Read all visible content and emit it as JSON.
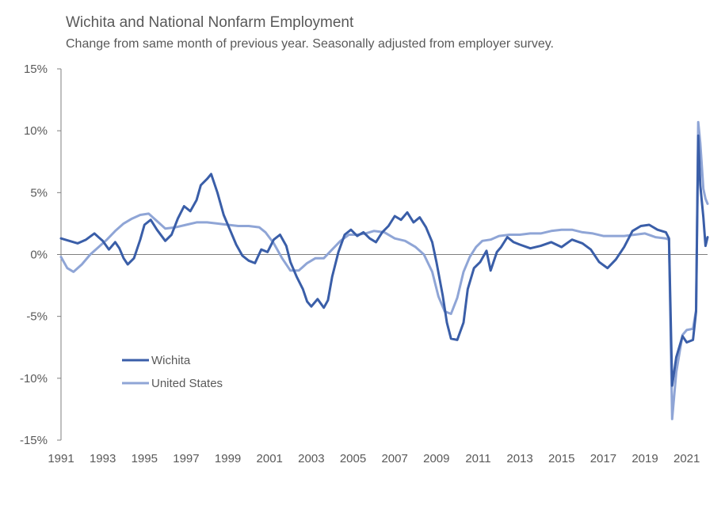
{
  "chart_data": {
    "type": "line",
    "title": "Wichita and National Nonfarm Employment",
    "subtitle": "Change from same month of previous year. Seasonally adjusted from employer survey.",
    "xlabel": "",
    "ylabel": "",
    "xlim": [
      1991,
      2021.9
    ],
    "ylim": [
      -15,
      15
    ],
    "yticks": [
      15,
      10,
      5,
      0,
      -5,
      -10,
      -15
    ],
    "ytick_labels": [
      "15%",
      "10%",
      "5%",
      "0%",
      "-5%",
      "-10%",
      "-15%"
    ],
    "xticks": [
      1991,
      1993,
      1995,
      1997,
      1999,
      2001,
      2003,
      2005,
      2007,
      2009,
      2011,
      2013,
      2015,
      2017,
      2019,
      2021
    ],
    "xtick_labels": [
      "1991",
      "1993",
      "1995",
      "1997",
      "1999",
      "2001",
      "2003",
      "2005",
      "2007",
      "2009",
      "2011",
      "2013",
      "2015",
      "2017",
      "2019",
      "2021"
    ],
    "grid": false,
    "legend_position": "lower-left",
    "series": [
      {
        "name": "Wichita",
        "color": "#3a5ea8",
        "points": [
          [
            1991.0,
            1.3
          ],
          [
            1991.4,
            1.1
          ],
          [
            1991.8,
            0.9
          ],
          [
            1992.2,
            1.2
          ],
          [
            1992.6,
            1.7
          ],
          [
            1993.0,
            1.1
          ],
          [
            1993.3,
            0.4
          ],
          [
            1993.6,
            1.0
          ],
          [
            1993.8,
            0.5
          ],
          [
            1994.0,
            -0.3
          ],
          [
            1994.2,
            -0.8
          ],
          [
            1994.5,
            -0.3
          ],
          [
            1994.8,
            1.2
          ],
          [
            1995.0,
            2.4
          ],
          [
            1995.3,
            2.8
          ],
          [
            1995.6,
            2.0
          ],
          [
            1996.0,
            1.1
          ],
          [
            1996.3,
            1.6
          ],
          [
            1996.6,
            2.9
          ],
          [
            1996.9,
            3.9
          ],
          [
            1997.2,
            3.5
          ],
          [
            1997.5,
            4.4
          ],
          [
            1997.7,
            5.6
          ],
          [
            1998.0,
            6.1
          ],
          [
            1998.2,
            6.5
          ],
          [
            1998.5,
            5.0
          ],
          [
            1998.8,
            3.2
          ],
          [
            1999.1,
            2.0
          ],
          [
            1999.4,
            0.8
          ],
          [
            1999.7,
            -0.1
          ],
          [
            2000.0,
            -0.5
          ],
          [
            2000.3,
            -0.7
          ],
          [
            2000.6,
            0.4
          ],
          [
            2000.9,
            0.2
          ],
          [
            2001.2,
            1.2
          ],
          [
            2001.5,
            1.6
          ],
          [
            2001.8,
            0.7
          ],
          [
            2002.0,
            -0.6
          ],
          [
            2002.3,
            -1.8
          ],
          [
            2002.6,
            -2.8
          ],
          [
            2002.8,
            -3.8
          ],
          [
            2003.0,
            -4.2
          ],
          [
            2003.3,
            -3.6
          ],
          [
            2003.6,
            -4.3
          ],
          [
            2003.8,
            -3.7
          ],
          [
            2004.0,
            -1.8
          ],
          [
            2004.3,
            0.2
          ],
          [
            2004.6,
            1.6
          ],
          [
            2004.9,
            2.0
          ],
          [
            2005.2,
            1.5
          ],
          [
            2005.5,
            1.8
          ],
          [
            2005.8,
            1.3
          ],
          [
            2006.1,
            1.0
          ],
          [
            2006.4,
            1.8
          ],
          [
            2006.7,
            2.3
          ],
          [
            2007.0,
            3.1
          ],
          [
            2007.3,
            2.8
          ],
          [
            2007.6,
            3.4
          ],
          [
            2007.9,
            2.6
          ],
          [
            2008.2,
            3.0
          ],
          [
            2008.5,
            2.2
          ],
          [
            2008.8,
            1.0
          ],
          [
            2009.0,
            -0.6
          ],
          [
            2009.3,
            -3.3
          ],
          [
            2009.5,
            -5.5
          ],
          [
            2009.7,
            -6.8
          ],
          [
            2010.0,
            -6.9
          ],
          [
            2010.3,
            -5.5
          ],
          [
            2010.5,
            -2.8
          ],
          [
            2010.8,
            -1.1
          ],
          [
            2011.1,
            -0.6
          ],
          [
            2011.4,
            0.3
          ],
          [
            2011.6,
            -1.3
          ],
          [
            2011.9,
            0.2
          ],
          [
            2012.1,
            0.6
          ],
          [
            2012.4,
            1.4
          ],
          [
            2012.7,
            1.0
          ],
          [
            2013.0,
            0.8
          ],
          [
            2013.5,
            0.5
          ],
          [
            2014.0,
            0.7
          ],
          [
            2014.5,
            1.0
          ],
          [
            2015.0,
            0.6
          ],
          [
            2015.5,
            1.2
          ],
          [
            2016.0,
            0.9
          ],
          [
            2016.4,
            0.4
          ],
          [
            2016.8,
            -0.6
          ],
          [
            2017.2,
            -1.1
          ],
          [
            2017.6,
            -0.4
          ],
          [
            2018.0,
            0.6
          ],
          [
            2018.4,
            1.9
          ],
          [
            2018.8,
            2.3
          ],
          [
            2019.2,
            2.4
          ],
          [
            2019.6,
            2.0
          ],
          [
            2020.0,
            1.8
          ],
          [
            2020.15,
            1.3
          ],
          [
            2020.3,
            -10.6
          ],
          [
            2020.5,
            -8.3
          ],
          [
            2020.8,
            -6.6
          ],
          [
            2021.0,
            -7.1
          ],
          [
            2021.3,
            -6.9
          ],
          [
            2021.45,
            -4.6
          ],
          [
            2021.55,
            9.6
          ],
          [
            2021.65,
            5.6
          ],
          [
            2021.8,
            3.0
          ],
          [
            2021.9,
            0.7
          ],
          [
            2022.0,
            1.4
          ]
        ]
      },
      {
        "name": "United States",
        "color": "#8fa5d6",
        "points": [
          [
            1991.0,
            -0.2
          ],
          [
            1991.3,
            -1.1
          ],
          [
            1991.6,
            -1.4
          ],
          [
            1992.0,
            -0.8
          ],
          [
            1992.4,
            0.0
          ],
          [
            1992.8,
            0.6
          ],
          [
            1993.2,
            1.2
          ],
          [
            1993.6,
            1.9
          ],
          [
            1994.0,
            2.5
          ],
          [
            1994.4,
            2.9
          ],
          [
            1994.8,
            3.2
          ],
          [
            1995.2,
            3.3
          ],
          [
            1995.6,
            2.7
          ],
          [
            1996.0,
            2.1
          ],
          [
            1996.5,
            2.2
          ],
          [
            1997.0,
            2.4
          ],
          [
            1997.5,
            2.6
          ],
          [
            1998.0,
            2.6
          ],
          [
            1998.5,
            2.5
          ],
          [
            1999.0,
            2.4
          ],
          [
            1999.5,
            2.3
          ],
          [
            2000.0,
            2.3
          ],
          [
            2000.5,
            2.2
          ],
          [
            2000.8,
            1.8
          ],
          [
            2001.2,
            0.9
          ],
          [
            2001.6,
            -0.3
          ],
          [
            2002.0,
            -1.3
          ],
          [
            2002.4,
            -1.3
          ],
          [
            2002.8,
            -0.7
          ],
          [
            2003.2,
            -0.3
          ],
          [
            2003.6,
            -0.3
          ],
          [
            2004.0,
            0.4
          ],
          [
            2004.4,
            1.1
          ],
          [
            2004.8,
            1.6
          ],
          [
            2005.2,
            1.6
          ],
          [
            2005.6,
            1.7
          ],
          [
            2006.0,
            1.9
          ],
          [
            2006.5,
            1.8
          ],
          [
            2007.0,
            1.3
          ],
          [
            2007.5,
            1.1
          ],
          [
            2008.0,
            0.6
          ],
          [
            2008.4,
            0.0
          ],
          [
            2008.8,
            -1.4
          ],
          [
            2009.1,
            -3.4
          ],
          [
            2009.4,
            -4.6
          ],
          [
            2009.7,
            -4.8
          ],
          [
            2010.0,
            -3.5
          ],
          [
            2010.3,
            -1.4
          ],
          [
            2010.6,
            -0.2
          ],
          [
            2010.9,
            0.6
          ],
          [
            2011.2,
            1.1
          ],
          [
            2011.6,
            1.2
          ],
          [
            2012.0,
            1.5
          ],
          [
            2012.5,
            1.6
          ],
          [
            2013.0,
            1.6
          ],
          [
            2013.5,
            1.7
          ],
          [
            2014.0,
            1.7
          ],
          [
            2014.5,
            1.9
          ],
          [
            2015.0,
            2.0
          ],
          [
            2015.5,
            2.0
          ],
          [
            2016.0,
            1.8
          ],
          [
            2016.5,
            1.7
          ],
          [
            2017.0,
            1.5
          ],
          [
            2017.5,
            1.5
          ],
          [
            2018.0,
            1.5
          ],
          [
            2018.5,
            1.6
          ],
          [
            2019.0,
            1.7
          ],
          [
            2019.5,
            1.4
          ],
          [
            2020.0,
            1.3
          ],
          [
            2020.15,
            1.2
          ],
          [
            2020.3,
            -13.3
          ],
          [
            2020.5,
            -9.5
          ],
          [
            2020.8,
            -6.5
          ],
          [
            2021.0,
            -6.1
          ],
          [
            2021.3,
            -6.0
          ],
          [
            2021.45,
            -4.5
          ],
          [
            2021.55,
            10.7
          ],
          [
            2021.65,
            9.0
          ],
          [
            2021.8,
            5.3
          ],
          [
            2021.9,
            4.5
          ],
          [
            2022.0,
            4.1
          ]
        ]
      }
    ]
  }
}
